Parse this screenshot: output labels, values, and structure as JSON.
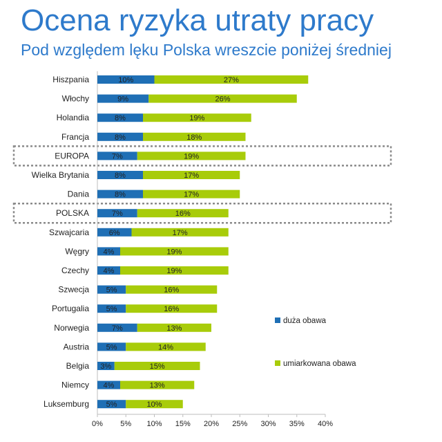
{
  "header": {
    "title": "Ocena ryzyka utraty pracy",
    "subtitle": "Pod względem lęku Polska wreszcie poniżej średniej"
  },
  "chart_data": {
    "type": "bar",
    "orientation": "horizontal",
    "stacked": true,
    "categories": [
      "Hiszpania",
      "Włochy",
      "Holandia",
      "Francja",
      "EUROPA",
      "Wielka Brytania",
      "Dania",
      "POLSKA",
      "Szwajcaria",
      "Węgry",
      "Czechy",
      "Szwecja",
      "Portugalia",
      "Norwegia",
      "Austria",
      "Belgia",
      "Niemcy",
      "Luksemburg"
    ],
    "series": [
      {
        "name": "duża obawa",
        "color": "#1F6FB5",
        "values": [
          10,
          9,
          8,
          8,
          7,
          8,
          8,
          7,
          6,
          4,
          4,
          5,
          5,
          7,
          5,
          3,
          4,
          5
        ]
      },
      {
        "name": "umiarkowana obawa",
        "color": "#A8CC0A",
        "values": [
          27,
          26,
          19,
          18,
          19,
          17,
          17,
          16,
          17,
          19,
          19,
          16,
          16,
          13,
          14,
          15,
          13,
          10
        ]
      }
    ],
    "xlim": [
      0,
      40
    ],
    "xticks": [
      "0%",
      "5%",
      "10%",
      "15%",
      "20%",
      "25%",
      "30%",
      "35%",
      "40%"
    ],
    "value_suffix": "%",
    "highlighted": [
      "EUROPA",
      "POLSKA"
    ],
    "grid": false,
    "legend": "right"
  }
}
